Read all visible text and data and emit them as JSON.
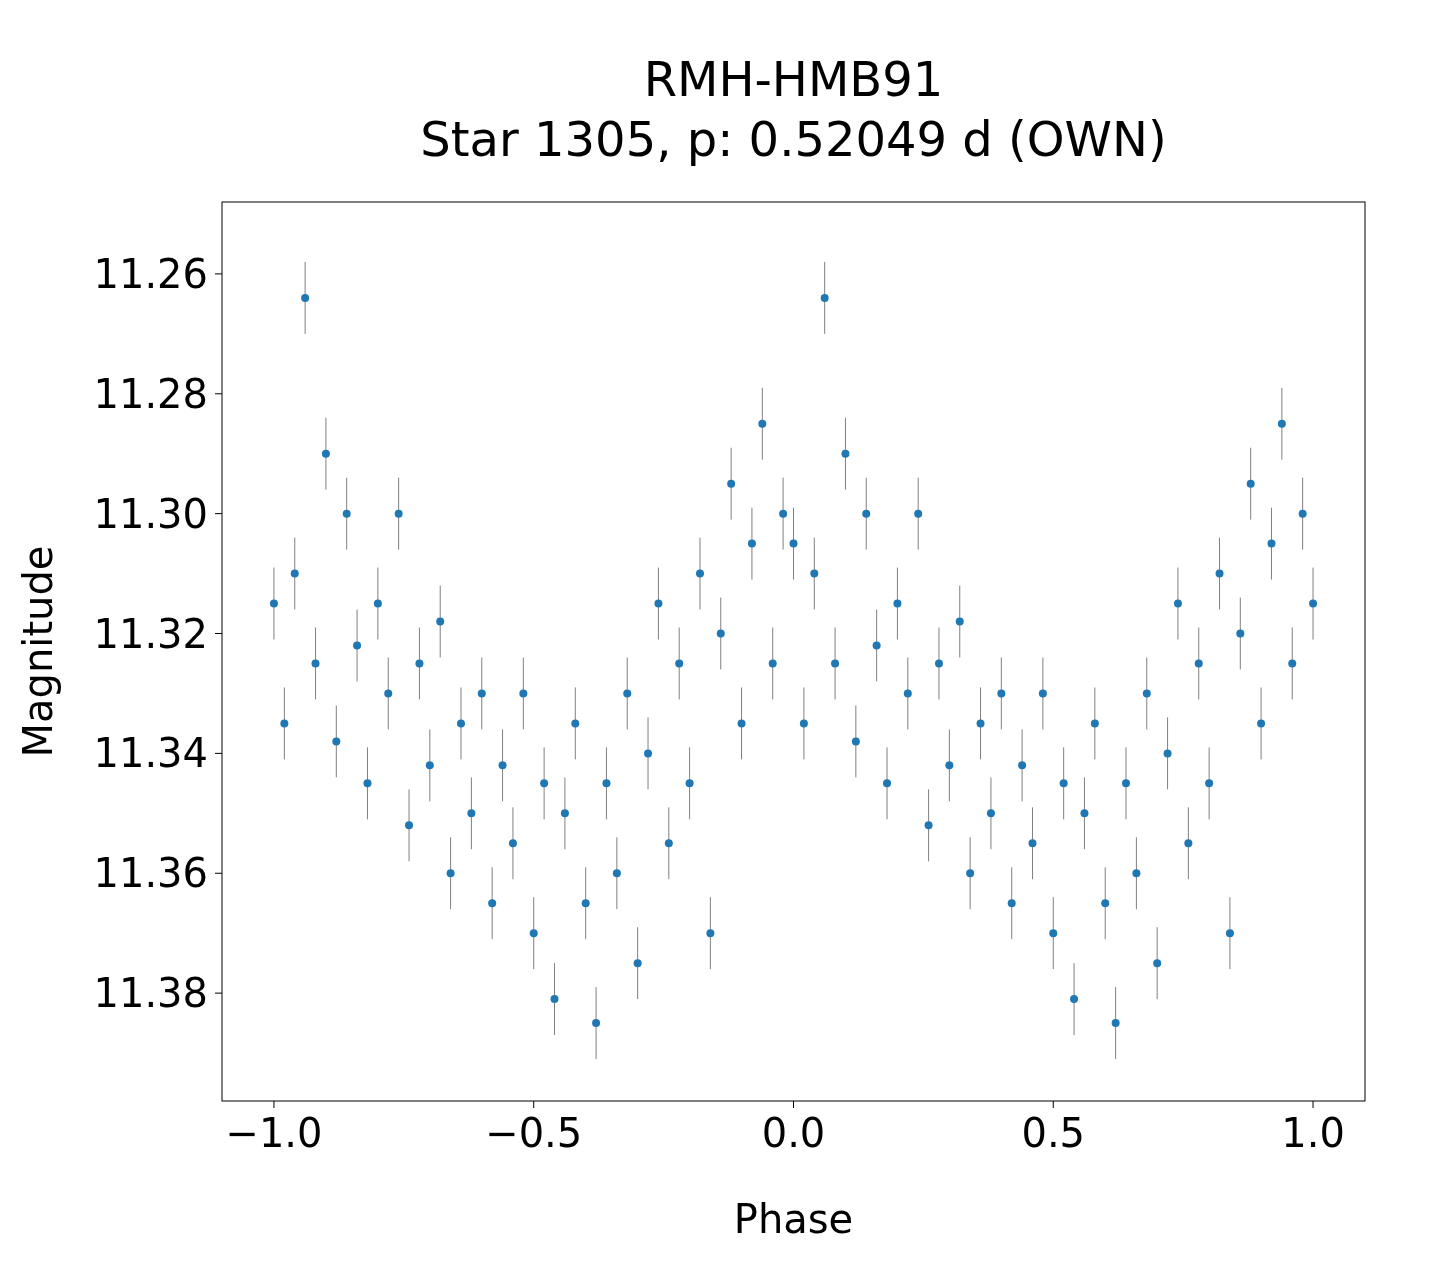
{
  "chart_data": {
    "type": "scatter",
    "title": "RMH-HMB91",
    "subtitle": "Star 1305, p: 0.52049 d (OWN)",
    "xlabel": "Phase",
    "ylabel": "Magnitude",
    "xlim": [
      -1.1,
      1.1
    ],
    "ylim": [
      11.398,
      11.248
    ],
    "xticks": [
      {
        "value": -1,
        "label": "−1.0"
      },
      {
        "value": -0.5,
        "label": "−0.5"
      },
      {
        "value": 0,
        "label": "0.0"
      },
      {
        "value": 0.5,
        "label": "0.5"
      },
      {
        "value": 1,
        "label": "1.0"
      }
    ],
    "yticks": [
      {
        "value": 11.26,
        "label": "11.26"
      },
      {
        "value": 11.28,
        "label": "11.28"
      },
      {
        "value": 11.3,
        "label": "11.30"
      },
      {
        "value": 11.32,
        "label": "11.32"
      },
      {
        "value": 11.34,
        "label": "11.34"
      },
      {
        "value": 11.36,
        "label": "11.36"
      },
      {
        "value": 11.38,
        "label": "11.38"
      }
    ],
    "marker": "circle",
    "series": [
      {
        "color": "#1f77b4",
        "x": [
          -1.0,
          -0.98,
          -0.96,
          -0.94,
          -0.92,
          -0.9,
          -0.88,
          -0.86,
          -0.84,
          -0.82,
          -0.8,
          -0.78,
          -0.76,
          -0.74,
          -0.72,
          -0.7,
          -0.68,
          -0.66,
          -0.64,
          -0.62,
          -0.6,
          -0.58,
          -0.56,
          -0.54,
          -0.52,
          -0.5,
          -0.48,
          -0.46,
          -0.44,
          -0.42,
          -0.4,
          -0.38,
          -0.36,
          -0.34,
          -0.32,
          -0.3,
          -0.28,
          -0.26,
          -0.24,
          -0.22,
          -0.2,
          -0.18,
          -0.16,
          -0.14,
          -0.12,
          -0.1,
          -0.08,
          -0.06,
          -0.04,
          -0.02,
          0.0,
          0.02,
          0.04,
          0.06,
          0.08,
          0.1,
          0.12,
          0.14,
          0.16,
          0.18,
          0.2,
          0.22,
          0.24,
          0.26,
          0.28,
          0.3,
          0.32,
          0.34,
          0.36,
          0.38,
          0.4,
          0.42,
          0.44,
          0.46,
          0.48,
          0.5,
          0.52,
          0.54,
          0.56,
          0.58,
          0.6,
          0.62,
          0.64,
          0.66,
          0.68,
          0.7,
          0.72,
          0.74,
          0.76,
          0.78,
          0.8,
          0.82,
          0.84,
          0.86,
          0.88,
          0.9,
          0.92,
          0.94,
          0.96,
          0.98,
          1.0
        ],
        "values": [
          11.315,
          11.335,
          11.31,
          11.264,
          11.325,
          11.29,
          11.338,
          11.3,
          11.322,
          11.345,
          11.315,
          11.33,
          11.3,
          11.352,
          11.325,
          11.342,
          11.318,
          11.36,
          11.335,
          11.35,
          11.33,
          11.365,
          11.342,
          11.355,
          11.33,
          11.37,
          11.345,
          11.381,
          11.35,
          11.335,
          11.365,
          11.385,
          11.345,
          11.36,
          11.33,
          11.375,
          11.34,
          11.315,
          11.355,
          11.325,
          11.345,
          11.31,
          11.37,
          11.32,
          11.295,
          11.335,
          11.305,
          11.285,
          11.325,
          11.3,
          11.305,
          11.335,
          11.31,
          11.264,
          11.325,
          11.29,
          11.338,
          11.3,
          11.322,
          11.345,
          11.315,
          11.33,
          11.3,
          11.352,
          11.325,
          11.342,
          11.318,
          11.36,
          11.335,
          11.35,
          11.33,
          11.365,
          11.342,
          11.355,
          11.33,
          11.37,
          11.345,
          11.381,
          11.35,
          11.335,
          11.365,
          11.385,
          11.345,
          11.36,
          11.33,
          11.375,
          11.34,
          11.315,
          11.355,
          11.325,
          11.345,
          11.31,
          11.37,
          11.32,
          11.295,
          11.335,
          11.305,
          11.285,
          11.325,
          11.3,
          11.315
        ],
        "errors": [
          0.006,
          0.006,
          0.006,
          0.006,
          0.006,
          0.006,
          0.006,
          0.006,
          0.006,
          0.006,
          0.006,
          0.006,
          0.006,
          0.006,
          0.006,
          0.006,
          0.006,
          0.006,
          0.006,
          0.006,
          0.006,
          0.006,
          0.006,
          0.006,
          0.006,
          0.006,
          0.006,
          0.006,
          0.006,
          0.006,
          0.006,
          0.006,
          0.006,
          0.006,
          0.006,
          0.006,
          0.006,
          0.006,
          0.006,
          0.006,
          0.006,
          0.006,
          0.006,
          0.006,
          0.006,
          0.006,
          0.006,
          0.006,
          0.006,
          0.006,
          0.006,
          0.006,
          0.006,
          0.006,
          0.006,
          0.006,
          0.006,
          0.006,
          0.006,
          0.006,
          0.006,
          0.006,
          0.006,
          0.006,
          0.006,
          0.006,
          0.006,
          0.006,
          0.006,
          0.006,
          0.006,
          0.006,
          0.006,
          0.006,
          0.006,
          0.006,
          0.006,
          0.006,
          0.006,
          0.006,
          0.006,
          0.006,
          0.006,
          0.006,
          0.006,
          0.006,
          0.006,
          0.006,
          0.006,
          0.006,
          0.006,
          0.006,
          0.006,
          0.006,
          0.006,
          0.006,
          0.006,
          0.006,
          0.006,
          0.006,
          0.006
        ]
      }
    ]
  }
}
